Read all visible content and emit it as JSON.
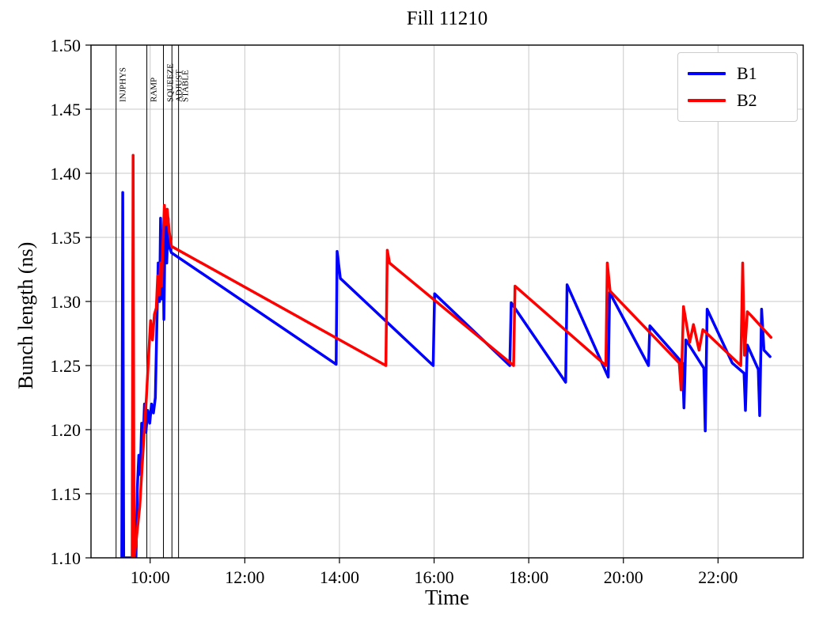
{
  "chart_data": {
    "type": "line",
    "title": "Fill 11210",
    "xlabel": "Time",
    "ylabel": "Bunch length (ns)",
    "x_unit": "hours_of_day",
    "xlim": [
      8.75,
      23.8
    ],
    "ylim": [
      1.1,
      1.5
    ],
    "grid": true,
    "grid_color": "#c8c8c8",
    "axis_color": "#000000",
    "x_ticks": [
      {
        "value": 10,
        "label": "10:00"
      },
      {
        "value": 12,
        "label": "12:00"
      },
      {
        "value": 14,
        "label": "14:00"
      },
      {
        "value": 16,
        "label": "16:00"
      },
      {
        "value": 18,
        "label": "18:00"
      },
      {
        "value": 20,
        "label": "20:00"
      },
      {
        "value": 22,
        "label": "22:00"
      }
    ],
    "y_ticks": [
      {
        "value": 1.1,
        "label": "1.10"
      },
      {
        "value": 1.15,
        "label": "1.15"
      },
      {
        "value": 1.2,
        "label": "1.20"
      },
      {
        "value": 1.25,
        "label": "1.25"
      },
      {
        "value": 1.3,
        "label": "1.30"
      },
      {
        "value": 1.35,
        "label": "1.35"
      },
      {
        "value": 1.4,
        "label": "1.40"
      },
      {
        "value": 1.45,
        "label": "1.45"
      },
      {
        "value": 1.5,
        "label": "1.50"
      }
    ],
    "beam_modes": [
      {
        "label": "INJPHYS",
        "time": 9.28
      },
      {
        "label": "RAMP",
        "time": 9.93
      },
      {
        "label": "SQUEEZE",
        "time": 10.28
      },
      {
        "label": "ADJUST",
        "time": 10.46
      },
      {
        "label": "STABLE",
        "time": 10.6
      }
    ],
    "legend": {
      "position": "upper right"
    },
    "series": [
      {
        "name": "B1",
        "color": "#0000ff",
        "points": [
          [
            9.4,
            1.1
          ],
          [
            9.42,
            1.385
          ],
          [
            9.44,
            1.1
          ],
          [
            9.7,
            1.1
          ],
          [
            9.73,
            1.155
          ],
          [
            9.76,
            1.18
          ],
          [
            9.79,
            1.165
          ],
          [
            9.82,
            1.205
          ],
          [
            9.85,
            1.19
          ],
          [
            9.88,
            1.22
          ],
          [
            9.91,
            1.198
          ],
          [
            9.95,
            1.215
          ],
          [
            9.99,
            1.205
          ],
          [
            10.03,
            1.22
          ],
          [
            10.07,
            1.213
          ],
          [
            10.11,
            1.225
          ],
          [
            10.14,
            1.278
          ],
          [
            10.17,
            1.33
          ],
          [
            10.2,
            1.3
          ],
          [
            10.22,
            1.365
          ],
          [
            10.25,
            1.302
          ],
          [
            10.27,
            1.355
          ],
          [
            10.29,
            1.286
          ],
          [
            10.32,
            1.37
          ],
          [
            10.35,
            1.33
          ],
          [
            10.38,
            1.365
          ],
          [
            10.41,
            1.342
          ],
          [
            10.45,
            1.338
          ],
          [
            13.93,
            1.251
          ],
          [
            13.95,
            1.339
          ],
          [
            14.02,
            1.318
          ],
          [
            15.98,
            1.25
          ],
          [
            16.01,
            1.306
          ],
          [
            17.6,
            1.25
          ],
          [
            17.63,
            1.299
          ],
          [
            18.78,
            1.237
          ],
          [
            18.81,
            1.313
          ],
          [
            19.68,
            1.241
          ],
          [
            19.71,
            1.307
          ],
          [
            20.53,
            1.25
          ],
          [
            20.56,
            1.281
          ],
          [
            21.25,
            1.252
          ],
          [
            21.28,
            1.217
          ],
          [
            21.32,
            1.27
          ],
          [
            21.7,
            1.248
          ],
          [
            21.73,
            1.199
          ],
          [
            21.77,
            1.294
          ],
          [
            22.3,
            1.252
          ],
          [
            22.55,
            1.244
          ],
          [
            22.58,
            1.215
          ],
          [
            22.62,
            1.266
          ],
          [
            22.85,
            1.247
          ],
          [
            22.88,
            1.211
          ],
          [
            22.92,
            1.294
          ],
          [
            22.97,
            1.262
          ],
          [
            23.1,
            1.257
          ]
        ]
      },
      {
        "name": "B2",
        "color": "#ff0000",
        "points": [
          [
            9.62,
            1.1
          ],
          [
            9.64,
            1.414
          ],
          [
            9.66,
            1.1
          ],
          [
            9.7,
            1.112
          ],
          [
            9.78,
            1.14
          ],
          [
            9.86,
            1.19
          ],
          [
            9.92,
            1.225
          ],
          [
            9.97,
            1.26
          ],
          [
            10.01,
            1.285
          ],
          [
            10.05,
            1.27
          ],
          [
            10.09,
            1.29
          ],
          [
            10.13,
            1.295
          ],
          [
            10.16,
            1.32
          ],
          [
            10.19,
            1.305
          ],
          [
            10.22,
            1.33
          ],
          [
            10.24,
            1.312
          ],
          [
            10.27,
            1.345
          ],
          [
            10.3,
            1.375
          ],
          [
            10.33,
            1.36
          ],
          [
            10.36,
            1.372
          ],
          [
            10.4,
            1.355
          ],
          [
            10.45,
            1.343
          ],
          [
            14.98,
            1.25
          ],
          [
            15.01,
            1.34
          ],
          [
            15.06,
            1.33
          ],
          [
            17.68,
            1.25
          ],
          [
            17.71,
            1.312
          ],
          [
            19.63,
            1.25
          ],
          [
            19.66,
            1.33
          ],
          [
            19.72,
            1.308
          ],
          [
            21.18,
            1.252
          ],
          [
            21.22,
            1.231
          ],
          [
            21.27,
            1.296
          ],
          [
            21.4,
            1.268
          ],
          [
            21.48,
            1.282
          ],
          [
            21.6,
            1.262
          ],
          [
            21.68,
            1.278
          ],
          [
            22.48,
            1.25
          ],
          [
            22.52,
            1.33
          ],
          [
            22.56,
            1.258
          ],
          [
            22.62,
            1.292
          ],
          [
            22.7,
            1.289
          ],
          [
            23.12,
            1.272
          ]
        ]
      }
    ]
  }
}
